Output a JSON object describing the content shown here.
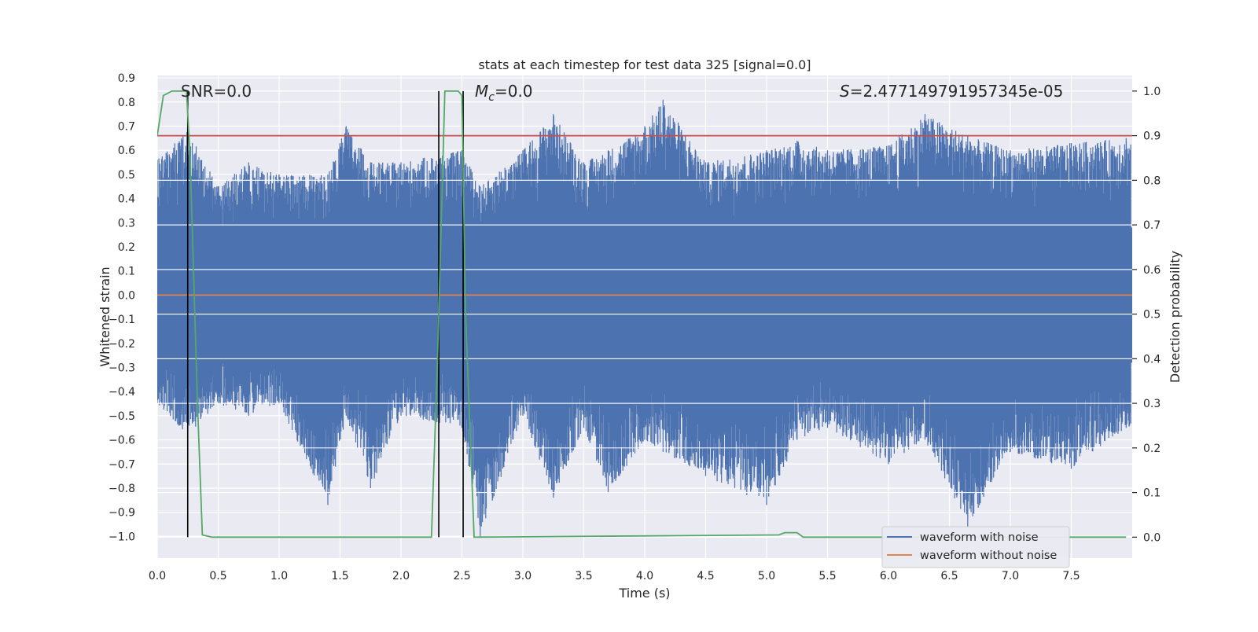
{
  "chart_data": {
    "type": "line",
    "title": "stats at each timestep for test data 325 [signal=0.0]",
    "xlabel": "Time (s)",
    "ylabel_left": "Whitened strain",
    "ylabel_right": "Detection probability",
    "xlim": [
      0.0,
      8.0
    ],
    "ylim_left": [
      -1.09,
      0.91
    ],
    "ylim_right": [
      -0.047,
      1.035
    ],
    "x_ticks": [
      "0.0",
      "0.5",
      "1.0",
      "1.5",
      "2.0",
      "2.5",
      "3.0",
      "3.5",
      "4.0",
      "4.5",
      "5.0",
      "5.5",
      "6.0",
      "6.5",
      "7.0",
      "7.5"
    ],
    "y_left_ticks": [
      "0.9",
      "0.8",
      "0.7",
      "0.6",
      "0.5",
      "0.4",
      "0.3",
      "0.2",
      "0.1",
      "0.0",
      "−0.1",
      "−0.2",
      "−0.3",
      "−0.4",
      "−0.5",
      "−0.6",
      "−0.7",
      "−0.8",
      "−0.9",
      "−1.0"
    ],
    "y_right_ticks": [
      "0.0",
      "0.1",
      "0.2",
      "0.3",
      "0.4",
      "0.5",
      "0.6",
      "0.7",
      "0.8",
      "0.9",
      "1.0"
    ],
    "grid": true,
    "legend_position": "bottom-right",
    "annotations": {
      "snr": "SNR=0.0",
      "mc": "=0.0",
      "s": "=2.477149791957345e-05"
    },
    "colors": {
      "noise": "#4c72b0",
      "no_noise": "#dd8452",
      "probability": "#55a868",
      "threshold": "#c44e52",
      "events": "#000000",
      "background": "#eaeaf2"
    },
    "series": [
      {
        "name": "waveform with noise",
        "role": "noise",
        "approx_envelope": [
          [
            0.0,
            -0.45,
            0.56
          ],
          [
            0.25,
            -0.58,
            0.68
          ],
          [
            0.5,
            -0.45,
            0.45
          ],
          [
            0.75,
            -0.5,
            0.55
          ],
          [
            1.0,
            -0.45,
            0.5
          ],
          [
            1.4,
            -0.87,
            0.5
          ],
          [
            1.55,
            -0.5,
            0.7
          ],
          [
            1.75,
            -0.8,
            0.55
          ],
          [
            2.0,
            -0.5,
            0.55
          ],
          [
            2.5,
            -0.55,
            0.6
          ],
          [
            2.65,
            -1.0,
            0.45
          ],
          [
            3.0,
            -0.5,
            0.6
          ],
          [
            3.25,
            -0.84,
            0.75
          ],
          [
            3.5,
            -0.55,
            0.55
          ],
          [
            3.7,
            -0.82,
            0.6
          ],
          [
            4.0,
            -0.6,
            0.7
          ],
          [
            4.15,
            -0.65,
            0.81
          ],
          [
            4.5,
            -0.75,
            0.55
          ],
          [
            5.0,
            -0.87,
            0.6
          ],
          [
            5.25,
            -0.6,
            0.64
          ],
          [
            5.5,
            -0.55,
            0.6
          ],
          [
            6.0,
            -0.7,
            0.62
          ],
          [
            6.3,
            -0.6,
            0.75
          ],
          [
            6.65,
            -0.96,
            0.66
          ],
          [
            7.0,
            -0.65,
            0.6
          ],
          [
            7.5,
            -0.72,
            0.63
          ],
          [
            7.95,
            -0.55,
            0.65
          ]
        ]
      },
      {
        "name": "waveform without noise",
        "role": "no_noise",
        "x": [
          0.0,
          8.0
        ],
        "y": [
          0.0,
          0.0
        ]
      },
      {
        "role": "probability",
        "axis": "right",
        "x": [
          0.0,
          0.05,
          0.12,
          0.2,
          0.24,
          0.27,
          0.33,
          0.37,
          0.45,
          2.25,
          2.3,
          2.36,
          2.41,
          2.47,
          2.5,
          2.53,
          2.6,
          5.1,
          5.15,
          5.2,
          5.25,
          5.3,
          7.95
        ],
        "y": [
          0.9,
          0.99,
          1.0,
          1.0,
          1.0,
          0.85,
          0.3,
          0.005,
          0.0,
          0.0,
          0.4,
          1.0,
          1.0,
          1.0,
          0.99,
          0.5,
          0.0,
          0.005,
          0.01,
          0.01,
          0.01,
          0.0,
          0.0
        ]
      },
      {
        "role": "threshold",
        "axis": "right",
        "x": [
          0.0,
          8.0
        ],
        "y": [
          0.9,
          0.9
        ]
      },
      {
        "role": "events",
        "axis": "right",
        "x": [
          0.25,
          2.31,
          2.51
        ],
        "y_range": [
          0.0,
          1.0
        ]
      }
    ]
  }
}
